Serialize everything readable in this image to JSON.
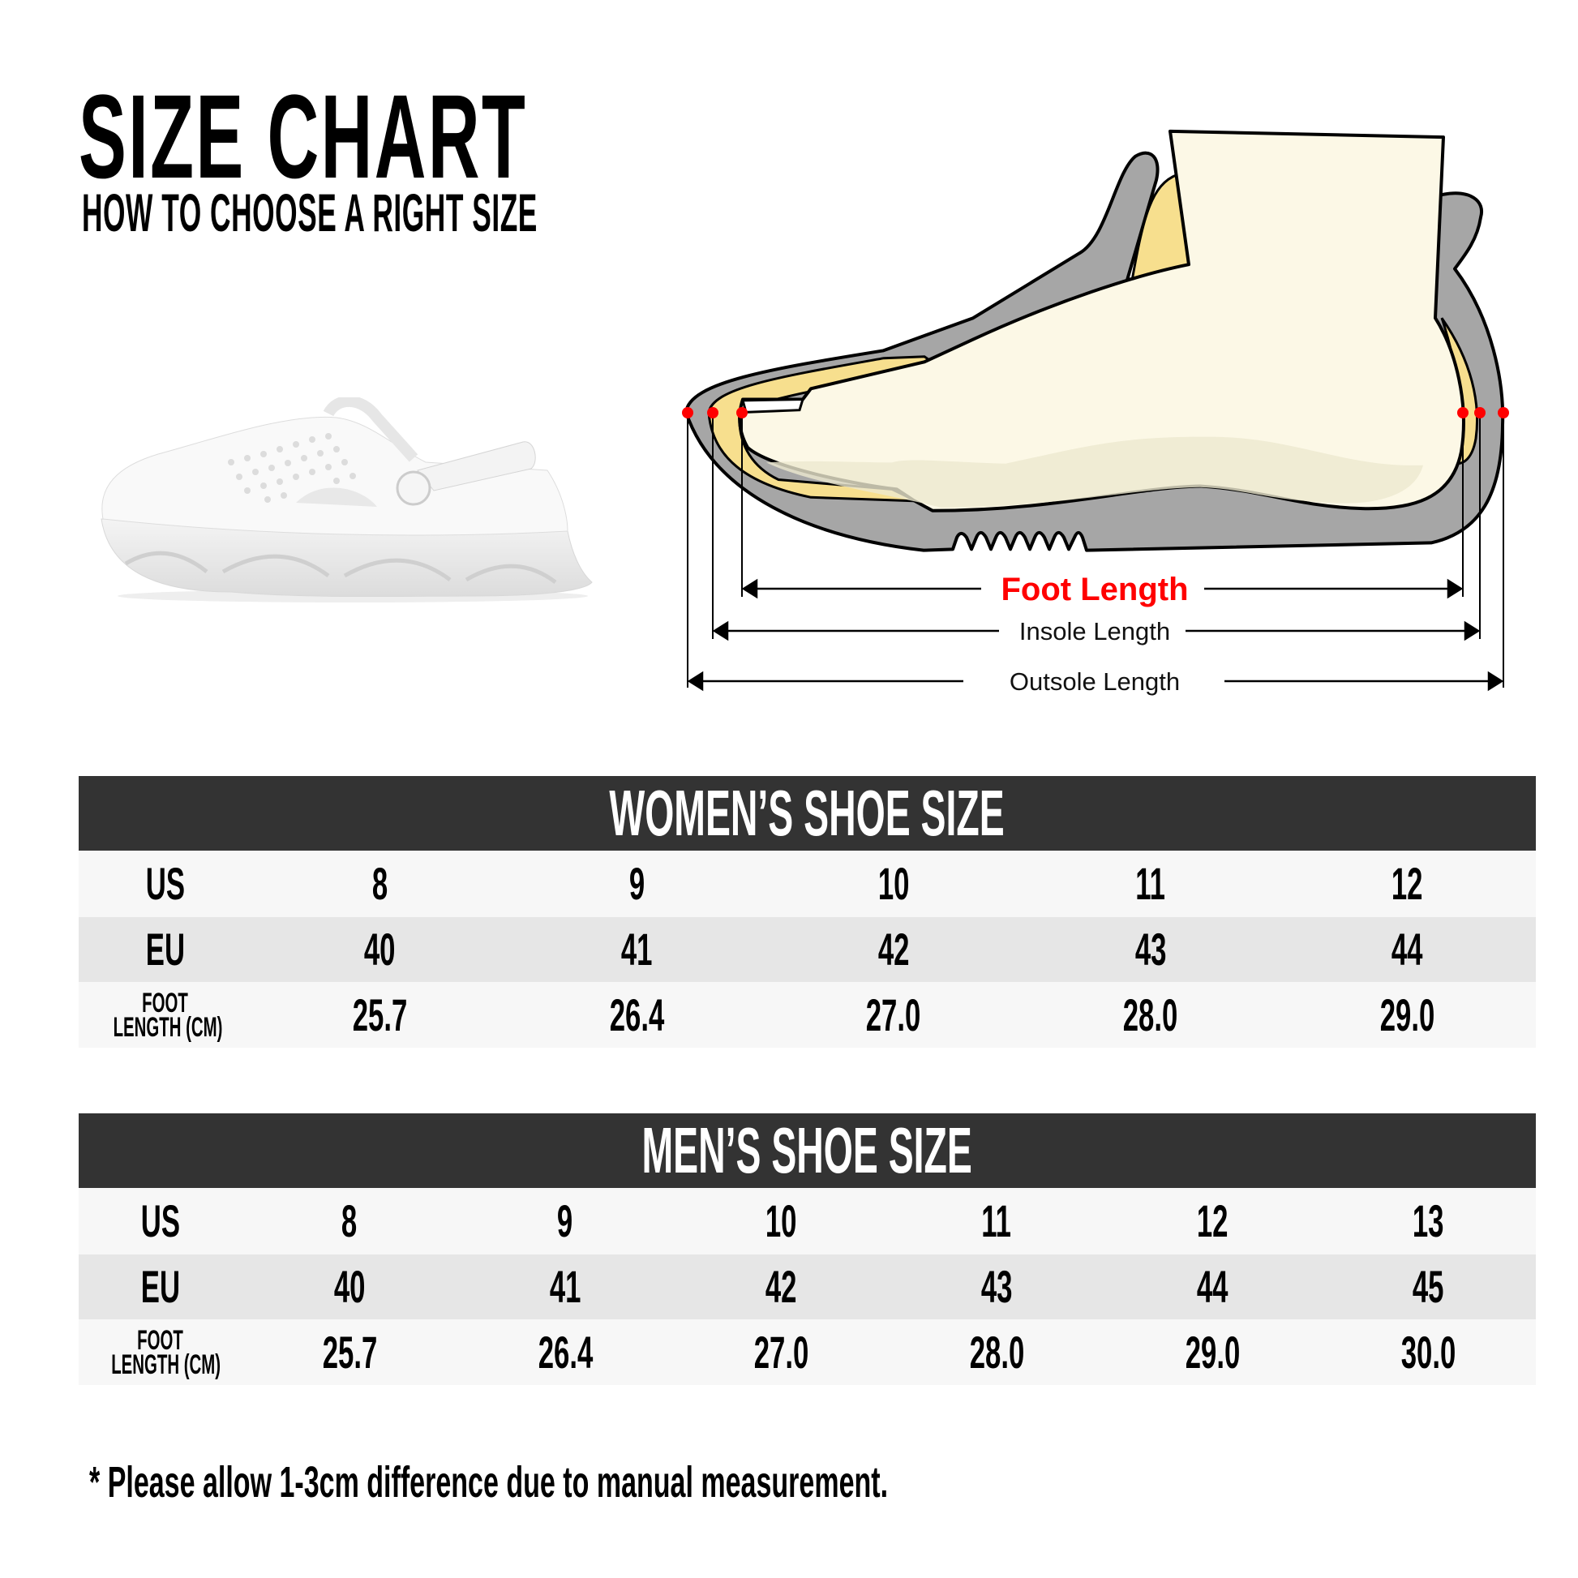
{
  "header": {
    "title": "SIZE CHART",
    "subtitle": "HOW TO CHOOSE A RIGHT SIZE"
  },
  "diagram": {
    "foot_length_label": "Foot Length",
    "insole_length_label": "Insole Length",
    "outsole_length_label": "Outsole Length",
    "colors": {
      "accent_red": "#ff0000",
      "shoe_gray": "#a6a6a6",
      "insole_yellow": "#f7df8e",
      "foot_cream": "#fcf8e6"
    }
  },
  "women": {
    "title": "WOMEN’S SHOE SIZE",
    "rows": [
      {
        "label": "US",
        "values": [
          "8",
          "9",
          "10",
          "11",
          "12"
        ]
      },
      {
        "label": "EU",
        "values": [
          "40",
          "41",
          "42",
          "43",
          "44"
        ]
      },
      {
        "label_line1": "FOOT",
        "label_line2": "LENGTH (CM)",
        "values": [
          "25.7",
          "26.4",
          "27.0",
          "28.0",
          "29.0"
        ]
      }
    ]
  },
  "men": {
    "title": "MEN’S SHOE SIZE",
    "rows": [
      {
        "label": "US",
        "values": [
          "8",
          "9",
          "10",
          "11",
          "12",
          "13"
        ]
      },
      {
        "label": "EU",
        "values": [
          "40",
          "41",
          "42",
          "43",
          "44",
          "45"
        ]
      },
      {
        "label_line1": "FOOT",
        "label_line2": "LENGTH (CM)",
        "values": [
          "25.7",
          "26.4",
          "27.0",
          "28.0",
          "29.0",
          "30.0"
        ]
      }
    ]
  },
  "footnote": "* Please allow 1-3cm difference due to manual measurement."
}
